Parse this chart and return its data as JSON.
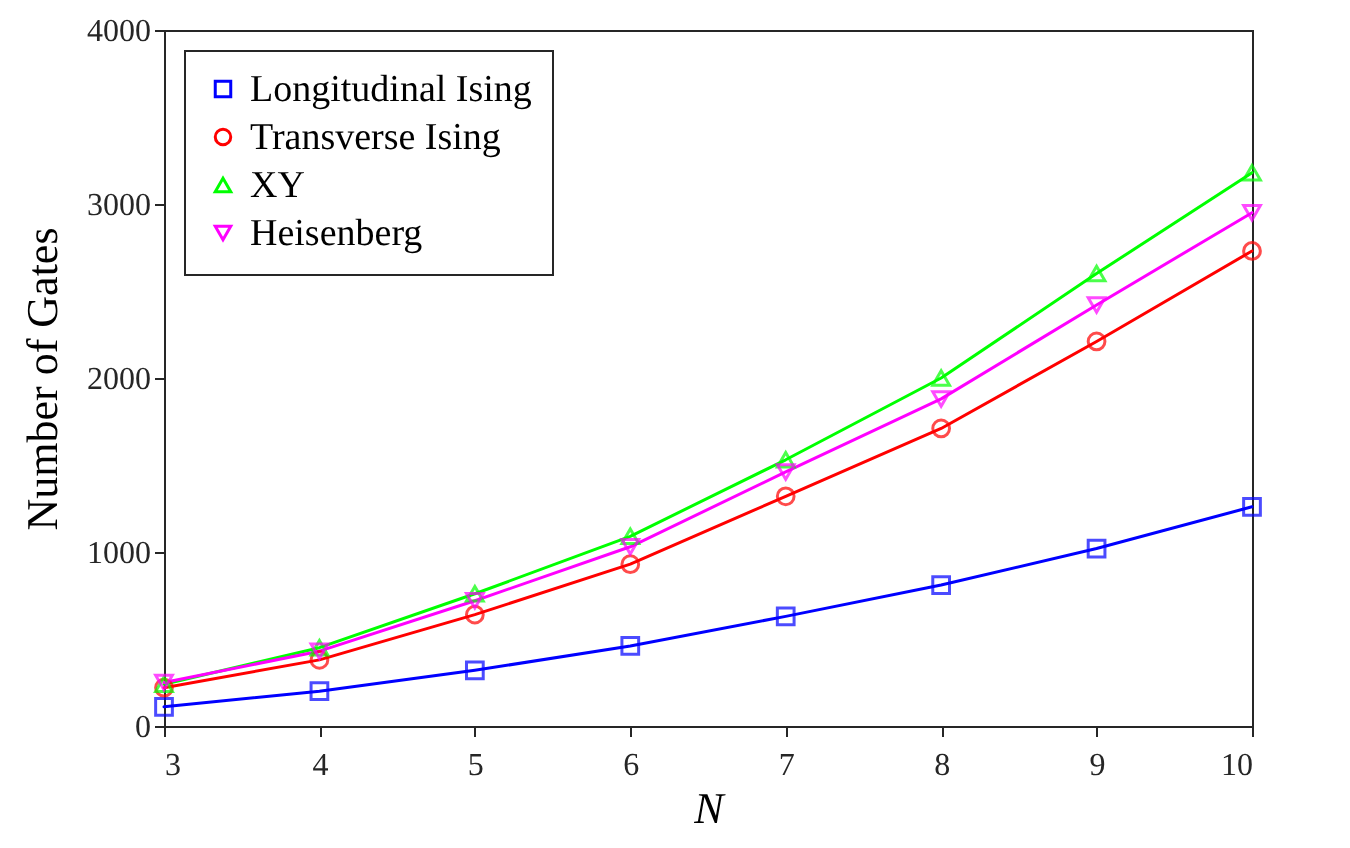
{
  "chart_data": {
    "type": "line",
    "xlabel": "N",
    "ylabel": "Number of Gates",
    "x": [
      3,
      4,
      5,
      6,
      7,
      8,
      9,
      10
    ],
    "xlim": [
      3,
      10
    ],
    "xticks": [
      3,
      4,
      5,
      6,
      7,
      8,
      9,
      10
    ],
    "ylim": [
      0,
      4000
    ],
    "yticks": [
      0,
      1000,
      2000,
      3000,
      4000
    ],
    "grid": false,
    "legend": "top left",
    "series": [
      {
        "name": "Longitudinal Ising",
        "color": "#0000ff",
        "marker": "square",
        "values": [
          110,
          200,
          320,
          460,
          630,
          810,
          1020,
          1260
        ]
      },
      {
        "name": "Transverse Ising",
        "color": "#ff0000",
        "marker": "circle",
        "values": [
          220,
          380,
          640,
          930,
          1320,
          1710,
          2210,
          2730
        ]
      },
      {
        "name": "XY",
        "color": "#00ff00",
        "marker": "triangle",
        "values": [
          240,
          450,
          760,
          1090,
          1530,
          2000,
          2600,
          3180
        ]
      },
      {
        "name": "Heisenberg",
        "color": "#ff00ff",
        "marker": "triangle-down",
        "values": [
          250,
          430,
          720,
          1030,
          1460,
          1880,
          2420,
          2950
        ]
      }
    ]
  }
}
